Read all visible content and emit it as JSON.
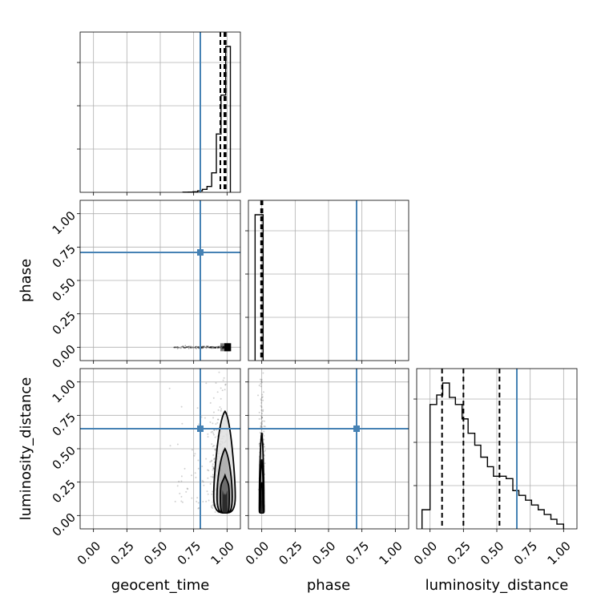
{
  "chart_data": {
    "type": "corner",
    "parameters": [
      "geocent_time",
      "phase",
      "luminosity_distance"
    ],
    "tick_labels": [
      "0.00",
      "0.25",
      "0.50",
      "0.75",
      "1.00"
    ],
    "axis_range": [
      -0.1,
      1.1
    ],
    "grid": true,
    "colors": {
      "truth": "#4682b4",
      "hist": "#000000",
      "grid": "#b0b0b0"
    },
    "truths": {
      "geocent_time": 0.8,
      "phase": 0.71,
      "luminosity_distance": 0.65
    },
    "quantiles": {
      "geocent_time": [
        0.95,
        0.98,
        0.99
      ],
      "phase": [
        -0.005,
        0.0,
        0.005
      ],
      "luminosity_distance": [
        0.09,
        0.25,
        0.52
      ]
    },
    "histograms": {
      "geocent_time": {
        "edges": [
          0.67,
          0.71,
          0.745,
          0.78,
          0.815,
          0.85,
          0.885,
          0.92,
          0.955,
          0.99,
          1.025
        ],
        "counts": [
          0.3,
          0.5,
          1.2,
          3,
          6,
          12,
          40,
          120,
          200,
          300
        ]
      },
      "phase": {
        "edges": [
          -0.05,
          0.0,
          0.01
        ],
        "counts": [
          1.0,
          1.0
        ]
      },
      "luminosity_distance": {
        "edges": [
          -0.06,
          0.0,
          0.05,
          0.095,
          0.145,
          0.19,
          0.24,
          0.285,
          0.335,
          0.38,
          0.43,
          0.475,
          0.525,
          0.57,
          0.62,
          0.665,
          0.715,
          0.76,
          0.81,
          0.855,
          0.905,
          0.95,
          1.0
        ],
        "counts": [
          0.08,
          0.52,
          0.56,
          0.61,
          0.55,
          0.52,
          0.46,
          0.4,
          0.35,
          0.3,
          0.26,
          0.22,
          0.22,
          0.21,
          0.16,
          0.14,
          0.12,
          0.1,
          0.08,
          0.06,
          0.04,
          0.02
        ]
      }
    },
    "panels_2d": [
      {
        "x": "geocent_time",
        "y": "phase",
        "samples_center": [
          0.98,
          0.0
        ],
        "x_spread": [
          0.6,
          1.02
        ],
        "y_spread": [
          -0.01,
          0.01
        ]
      },
      {
        "x": "geocent_time",
        "y": "luminosity_distance",
        "samples_center": [
          0.98,
          0.15
        ],
        "x_spread": [
          0.6,
          1.04
        ],
        "y_spread": [
          0.0,
          0.95
        ]
      },
      {
        "x": "phase",
        "y": "luminosity_distance",
        "samples_center": [
          0.0,
          0.15
        ],
        "x_spread": [
          -0.02,
          0.02
        ],
        "y_spread": [
          0.0,
          0.95
        ]
      }
    ]
  }
}
